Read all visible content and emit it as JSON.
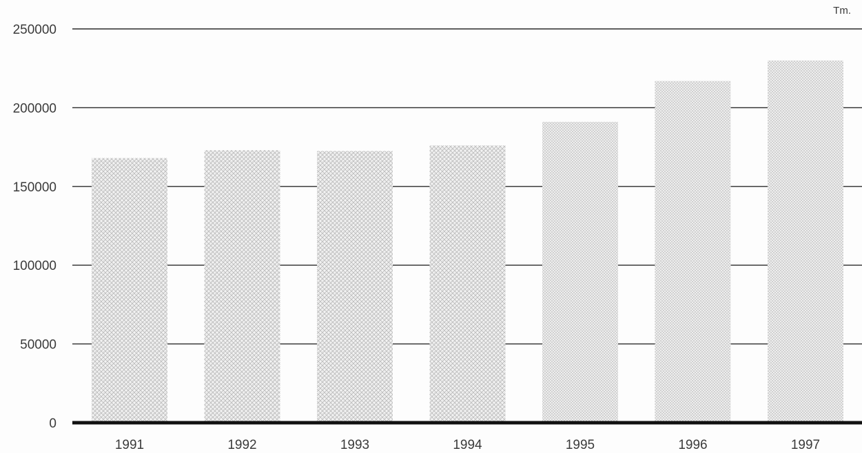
{
  "chart_data": {
    "type": "bar",
    "categories": [
      "1991",
      "1992",
      "1993",
      "1994",
      "1995",
      "1996",
      "1997"
    ],
    "values": [
      168000,
      173000,
      172500,
      176000,
      191000,
      217000,
      230000
    ],
    "unit": "Tm.",
    "ylim": [
      0,
      250000
    ],
    "yticks": [
      0,
      50000,
      100000,
      150000,
      200000,
      250000
    ],
    "ytick_labels": [
      "0",
      "50000",
      "100000",
      "150000",
      "200000",
      "250000"
    ],
    "grid": true,
    "bar_color": "#d6d6d6",
    "grid_color": "#2a2a2a"
  }
}
